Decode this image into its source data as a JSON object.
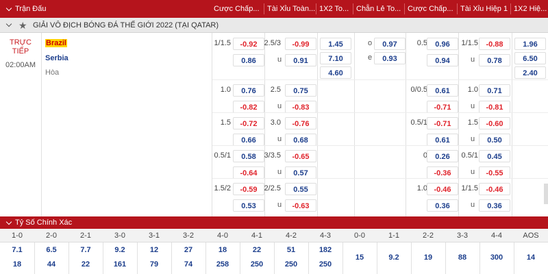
{
  "header": {
    "columns": [
      "Trận Đấu",
      "Cược Chấp...",
      "Tài Xỉu Toàn...",
      "1X2 To...",
      "Chẵn Lẻ To...",
      "Cược Chấp...",
      "Tài Xỉu Hiệp 1",
      "1X2 Hiệ..."
    ]
  },
  "league": {
    "name": "GIẢI VÔ ĐỊCH BÓNG ĐÁ THẾ GIỚI 2022 (TẠI QATAR)"
  },
  "match": {
    "status_line1": "TRỰC",
    "status_line2": "TIẾP",
    "time": "02:00AM",
    "home": "Brazil",
    "away": "Serbia",
    "draw": "Hòa"
  },
  "odds_rows": [
    {
      "hdp_line": "1/1.5",
      "hdp_home": "-0.92",
      "hdp_away": "0.86",
      "ou_line": "2.5/3",
      "ou_over": "-0.99",
      "ou_under_label": "u",
      "ou_under": "0.91",
      "x12": [
        "1.45",
        "7.10",
        "4.60"
      ],
      "oe": [
        {
          "label": "o",
          "odd": "0.97"
        },
        {
          "label": "e",
          "odd": "0.93"
        }
      ],
      "h1_hdp_line": "0.5",
      "h1_hdp_home": "0.96",
      "h1_hdp_away": "0.94",
      "h1_ou_line": "1/1.5",
      "h1_ou_over": "-0.88",
      "h1_ou_under_label": "u",
      "h1_ou_under": "0.78",
      "h1_x12": [
        "1.96",
        "6.50",
        "2.40"
      ]
    },
    {
      "hdp_line": "1.0",
      "hdp_home": "0.76",
      "hdp_away": "-0.82",
      "ou_line": "2.5",
      "ou_over": "0.75",
      "ou_under_label": "u",
      "ou_under": "-0.83",
      "h1_hdp_line": "0/0.5",
      "h1_hdp_home": "0.61",
      "h1_hdp_away": "-0.71",
      "h1_ou_line": "1.0",
      "h1_ou_over": "0.71",
      "h1_ou_under_label": "u",
      "h1_ou_under": "-0.81"
    },
    {
      "hdp_line": "1.5",
      "hdp_home": "-0.72",
      "hdp_away": "0.66",
      "ou_line": "3.0",
      "ou_over": "-0.76",
      "ou_under_label": "u",
      "ou_under": "0.68",
      "h1_hdp_line": "0.5/1",
      "h1_hdp_home": "-0.71",
      "h1_hdp_away": "0.61",
      "h1_ou_line": "1.5",
      "h1_ou_over": "-0.60",
      "h1_ou_under_label": "u",
      "h1_ou_under": "0.50"
    },
    {
      "hdp_line": "0.5/1",
      "hdp_home": "0.58",
      "hdp_away": "-0.64",
      "ou_line": "3/3.5",
      "ou_over": "-0.65",
      "ou_under_label": "u",
      "ou_under": "0.57",
      "h1_hdp_line": "0",
      "h1_hdp_home": "0.26",
      "h1_hdp_away": "-0.36",
      "h1_ou_line": "0.5/1",
      "h1_ou_over": "0.45",
      "h1_ou_under_label": "u",
      "h1_ou_under": "-0.55"
    },
    {
      "hdp_line": "1.5/2",
      "hdp_home": "-0.59",
      "hdp_away": "0.53",
      "ou_line": "2/2.5",
      "ou_over": "0.55",
      "ou_under_label": "u",
      "ou_under": "-0.63",
      "h1_hdp_line": "1.0",
      "h1_hdp_home": "-0.46",
      "h1_hdp_away": "0.36",
      "h1_ou_line": "1/1.5",
      "h1_ou_over": "-0.46",
      "h1_ou_under_label": "u",
      "h1_ou_under": "0.36"
    }
  ],
  "correct_score": {
    "title": "Tỷ Số Chính Xác",
    "scores": [
      "1-0",
      "2-0",
      "2-1",
      "3-0",
      "3-1",
      "3-2",
      "4-0",
      "4-1",
      "4-2",
      "4-3",
      "0-0",
      "1-1",
      "2-2",
      "3-3",
      "4-4",
      "AOS"
    ],
    "home_odds": [
      "7.1",
      "6.5",
      "7.7",
      "9.2",
      "12",
      "27",
      "18",
      "22",
      "51",
      "182",
      "15",
      "9.2",
      "19",
      "88",
      "300",
      "14"
    ],
    "away_odds": [
      "18",
      "44",
      "22",
      "161",
      "79",
      "74",
      "258",
      "250",
      "250",
      "250",
      "",
      "",
      "",
      "",
      "",
      ""
    ]
  },
  "colors": {
    "header_red": "#b5141c",
    "odds_blue": "#1c3e8c",
    "odds_red": "#e0232b",
    "brazil_bg": "#ffd400"
  }
}
